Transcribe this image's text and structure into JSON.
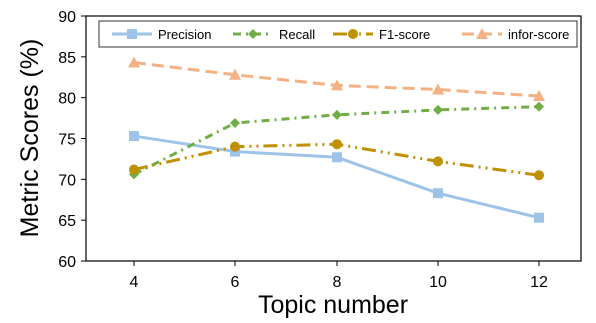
{
  "chart_data": {
    "type": "line",
    "title": "",
    "xlabel": "Topic number",
    "ylabel": "Metric Scores (%)",
    "x": [
      4,
      6,
      8,
      10,
      12
    ],
    "x_tick_labels": [
      "4",
      "6",
      "8",
      "10",
      "12"
    ],
    "ylim": [
      60,
      90
    ],
    "y_ticks": [
      60,
      65,
      70,
      75,
      80,
      85,
      90
    ],
    "y_tick_labels": [
      "60",
      "65",
      "70",
      "75",
      "80",
      "85",
      "90"
    ],
    "grid": false,
    "legend_position": "top",
    "series": [
      {
        "name": "Precision",
        "values": [
          75.3,
          73.4,
          72.7,
          68.3,
          65.3
        ],
        "color": "#9DC3E6",
        "marker": "square",
        "line_style": "solid"
      },
      {
        "name": "Recall",
        "values": [
          70.6,
          76.9,
          77.9,
          78.5,
          78.9
        ],
        "color": "#70AD47",
        "marker": "diamond",
        "line_style": "dash-dot"
      },
      {
        "name": "F1-score",
        "values": [
          71.2,
          74.0,
          74.3,
          72.2,
          70.5
        ],
        "color": "#BF9000",
        "marker": "circle",
        "line_style": "long-dash-dot-dot"
      },
      {
        "name": "infor-score",
        "values": [
          84.3,
          82.8,
          81.5,
          81.0,
          80.2
        ],
        "color": "#F4B183",
        "marker": "triangle",
        "line_style": "dashed"
      }
    ]
  }
}
